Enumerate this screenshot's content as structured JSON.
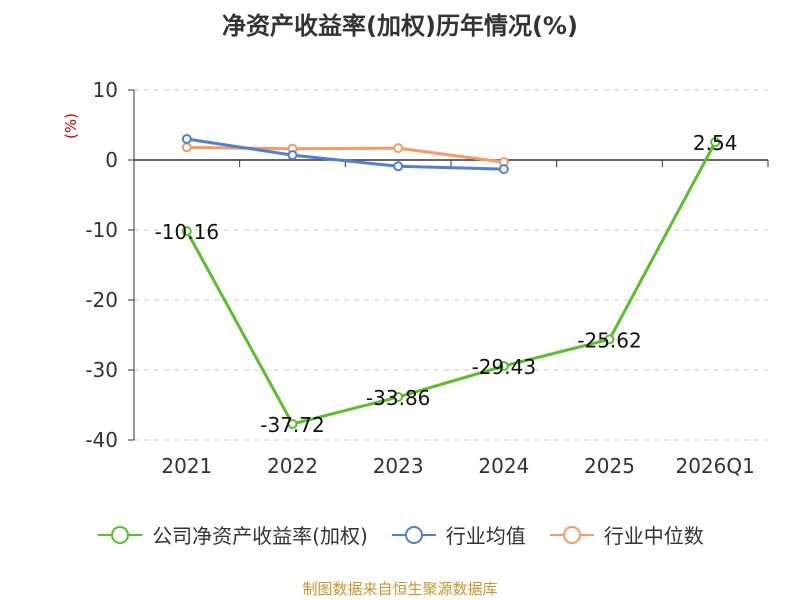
{
  "chart_data": {
    "type": "line",
    "title": "净资产收益率(加权)历年情况(%)",
    "ylabel": "(%)",
    "categories": [
      "2021",
      "2022",
      "2023",
      "2024",
      "2025",
      "2026Q1"
    ],
    "ylim": [
      -40,
      10
    ],
    "yticks": [
      "10",
      "0",
      "-10",
      "-20",
      "-30",
      "-40"
    ],
    "grid": true,
    "legend_position": "bottom",
    "series": [
      {
        "name": "公司净资产收益率(加权)",
        "color": "#5bbf2a",
        "values": [
          -10.16,
          -37.72,
          -33.86,
          -29.43,
          -25.62,
          2.54
        ],
        "labels": [
          "-10.16",
          "-37.72",
          "-33.86",
          "-29.43",
          "-25.62",
          "2.54"
        ]
      },
      {
        "name": "行业均值",
        "color": "#4f7fd6",
        "values": [
          3.0,
          0.7,
          -0.9,
          -1.3,
          null,
          null
        ]
      },
      {
        "name": "行业中位数",
        "color": "#f79a64",
        "values": [
          1.8,
          1.6,
          1.7,
          -0.3,
          null,
          null
        ]
      }
    ],
    "source": "制图数据来自恒生聚源数据库"
  }
}
